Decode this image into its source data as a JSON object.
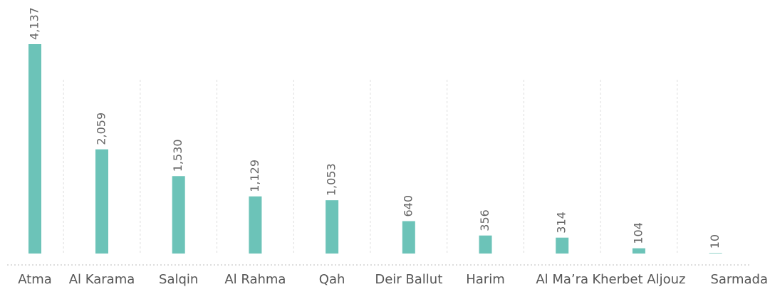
{
  "chart_data": {
    "type": "bar",
    "categories": [
      "Atma",
      "Al Karama",
      "Salqin",
      "Al Rahma",
      "Qah",
      "Deir Ballut",
      "Harim",
      "Al Ma’ra",
      "Kherbet Aljouz",
      "Sarmada"
    ],
    "values": [
      4137,
      2059,
      1530,
      1129,
      1053,
      640,
      356,
      314,
      104,
      10
    ],
    "value_labels": [
      "4,137",
      "2,059",
      "1,530",
      "1,129",
      "1,053",
      "640",
      "356",
      "314",
      "104",
      "10"
    ],
    "color": "#6cc3b8"
  }
}
